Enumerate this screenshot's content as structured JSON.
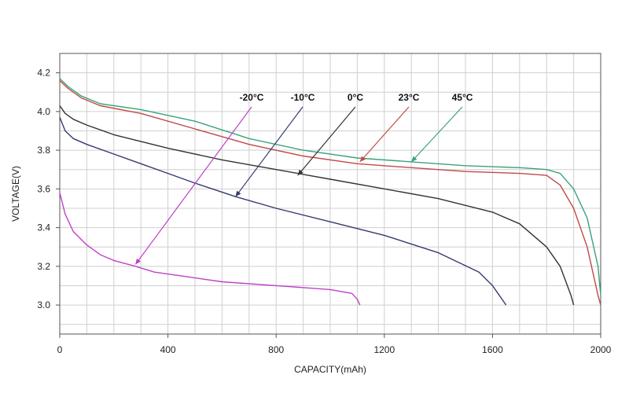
{
  "chart_data": {
    "type": "line",
    "title": "",
    "xlabel": "CAPACITY(mAh)",
    "ylabel": "VOLTAGE(V)",
    "xlim": [
      0,
      2000
    ],
    "ylim": [
      2.85,
      4.3
    ],
    "x_ticks": [
      "0",
      "400",
      "800",
      "1200",
      "1600",
      "2000"
    ],
    "x_tick_values": [
      0,
      400,
      800,
      1200,
      1600,
      2000
    ],
    "y_ticks": [
      "3.0",
      "3.2",
      "3.4",
      "3.6",
      "3.8",
      "4.0",
      "4.2"
    ],
    "y_tick_values": [
      3.0,
      3.2,
      3.4,
      3.6,
      3.8,
      4.0,
      4.2
    ],
    "grid": true,
    "legend": "inline-labels-top",
    "series": [
      {
        "name": "-20°C",
        "color": "#c040c8",
        "x": [
          0,
          20,
          50,
          100,
          150,
          200,
          280,
          350,
          450,
          600,
          800,
          1000,
          1080,
          1100,
          1110
        ],
        "y": [
          3.58,
          3.47,
          3.38,
          3.31,
          3.26,
          3.23,
          3.2,
          3.17,
          3.15,
          3.12,
          3.1,
          3.08,
          3.06,
          3.03,
          3.0
        ],
        "label_anchor": {
          "x": 280,
          "y": 3.21
        }
      },
      {
        "name": "-10°C",
        "color": "#353a6e",
        "x": [
          0,
          20,
          50,
          100,
          200,
          300,
          400,
          500,
          650,
          800,
          1000,
          1200,
          1400,
          1550,
          1600,
          1640,
          1650
        ],
        "y": [
          3.97,
          3.9,
          3.86,
          3.83,
          3.78,
          3.73,
          3.68,
          3.63,
          3.56,
          3.5,
          3.43,
          3.36,
          3.27,
          3.17,
          3.1,
          3.02,
          3.0
        ],
        "label_anchor": {
          "x": 650,
          "y": 3.56
        }
      },
      {
        "name": "0°C",
        "color": "#333333",
        "x": [
          0,
          20,
          50,
          100,
          200,
          400,
          600,
          800,
          1000,
          1200,
          1400,
          1600,
          1700,
          1800,
          1850,
          1890,
          1900
        ],
        "y": [
          4.03,
          3.99,
          3.96,
          3.93,
          3.88,
          3.81,
          3.75,
          3.7,
          3.65,
          3.6,
          3.55,
          3.48,
          3.42,
          3.3,
          3.2,
          3.05,
          3.0
        ],
        "label_anchor": {
          "x": 880,
          "y": 3.67
        }
      },
      {
        "name": "23°C",
        "color": "#c04a48",
        "x": [
          0,
          30,
          80,
          150,
          300,
          500,
          700,
          900,
          1100,
          1300,
          1500,
          1700,
          1800,
          1850,
          1900,
          1950,
          1990,
          2000
        ],
        "y": [
          4.16,
          4.12,
          4.07,
          4.03,
          3.99,
          3.91,
          3.83,
          3.77,
          3.73,
          3.71,
          3.69,
          3.68,
          3.67,
          3.62,
          3.5,
          3.3,
          3.05,
          3.0
        ],
        "label_anchor": {
          "x": 1110,
          "y": 3.74
        }
      },
      {
        "name": "45°C",
        "color": "#3aa37a",
        "x": [
          0,
          30,
          80,
          150,
          300,
          500,
          700,
          900,
          1100,
          1300,
          1500,
          1700,
          1800,
          1850,
          1900,
          1950,
          1990,
          2000
        ],
        "y": [
          4.17,
          4.13,
          4.08,
          4.04,
          4.01,
          3.95,
          3.86,
          3.8,
          3.76,
          3.74,
          3.72,
          3.71,
          3.7,
          3.68,
          3.6,
          3.45,
          3.2,
          3.05
        ],
        "label_anchor": {
          "x": 1300,
          "y": 3.74
        }
      }
    ]
  }
}
